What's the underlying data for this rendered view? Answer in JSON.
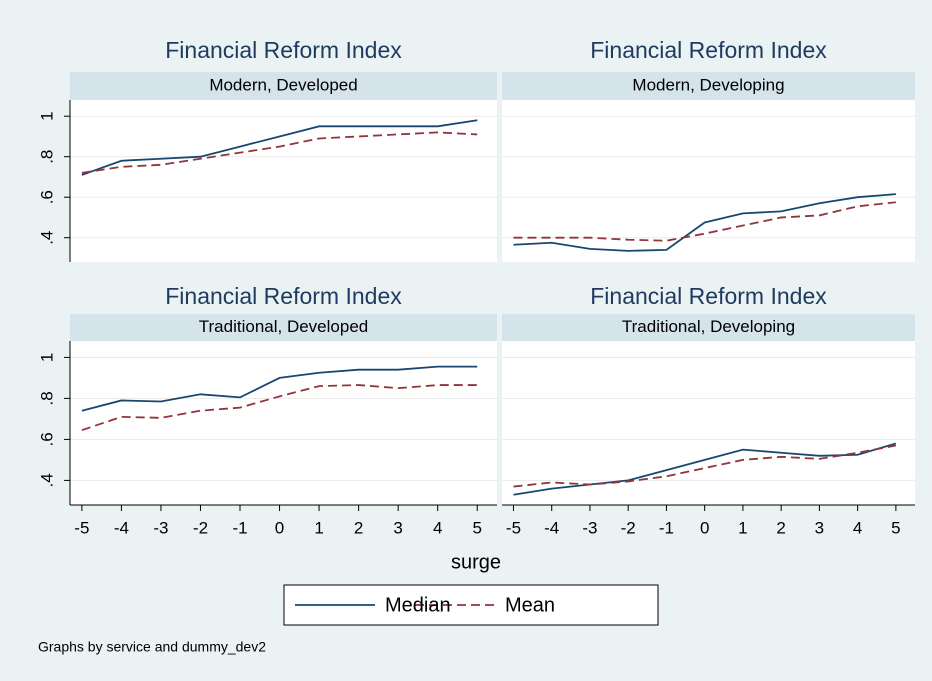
{
  "chart_data": [
    {
      "type": "line",
      "title": "Financial Reform Index",
      "subtitle": "Modern, Developed",
      "x": [
        -5,
        -4,
        -3,
        -2,
        -1,
        0,
        1,
        2,
        3,
        4,
        5
      ],
      "xlim": [
        -5.3,
        5.5
      ],
      "ylim": [
        0.28,
        1.08
      ],
      "yticks": [
        {
          "value": 0.4,
          "label": ".4"
        },
        {
          "value": 0.6,
          "label": ".6"
        },
        {
          "value": 0.8,
          "label": ".8"
        },
        1
      ],
      "grid": true,
      "series": [
        {
          "name": "Median",
          "color": "#1a476f",
          "dash": false,
          "values": [
            0.71,
            0.78,
            0.79,
            0.8,
            0.85,
            0.9,
            0.95,
            0.95,
            0.95,
            0.95,
            0.98
          ]
        },
        {
          "name": "Mean",
          "color": "#90353b",
          "dash": true,
          "values": [
            0.72,
            0.75,
            0.76,
            0.79,
            0.82,
            0.85,
            0.89,
            0.9,
            0.91,
            0.92,
            0.91
          ]
        }
      ]
    },
    {
      "type": "line",
      "title": "Financial Reform Index",
      "subtitle": "Modern, Developing",
      "x": [
        -5,
        -4,
        -3,
        -2,
        -1,
        0,
        1,
        2,
        3,
        4,
        5
      ],
      "xlim": [
        -5.3,
        5.5
      ],
      "ylim": [
        0.28,
        1.08
      ],
      "yticks": [
        {
          "value": 0.4,
          "label": ".4"
        },
        {
          "value": 0.6,
          "label": ".6"
        },
        {
          "value": 0.8,
          "label": ".8"
        },
        1
      ],
      "grid": true,
      "series": [
        {
          "name": "Median",
          "color": "#1a476f",
          "dash": false,
          "values": [
            0.365,
            0.375,
            0.345,
            0.335,
            0.34,
            0.475,
            0.52,
            0.53,
            0.57,
            0.6,
            0.615
          ]
        },
        {
          "name": "Mean",
          "color": "#90353b",
          "dash": true,
          "values": [
            0.4,
            0.4,
            0.4,
            0.39,
            0.385,
            0.42,
            0.46,
            0.5,
            0.51,
            0.555,
            0.575
          ]
        }
      ]
    },
    {
      "type": "line",
      "title": "Financial Reform Index",
      "subtitle": "Traditional, Developed",
      "x": [
        -5,
        -4,
        -3,
        -2,
        -1,
        0,
        1,
        2,
        3,
        4,
        5
      ],
      "xlim": [
        -5.3,
        5.5
      ],
      "xticks": [
        -5,
        -4,
        -3,
        -2,
        -1,
        0,
        1,
        2,
        3,
        4,
        5
      ],
      "ylim": [
        0.28,
        1.08
      ],
      "yticks": [
        {
          "value": 0.4,
          "label": ".4"
        },
        {
          "value": 0.6,
          "label": ".6"
        },
        {
          "value": 0.8,
          "label": ".8"
        },
        1
      ],
      "grid": true,
      "series": [
        {
          "name": "Median",
          "color": "#1a476f",
          "dash": false,
          "values": [
            0.74,
            0.79,
            0.785,
            0.82,
            0.805,
            0.9,
            0.925,
            0.94,
            0.94,
            0.955,
            0.955
          ]
        },
        {
          "name": "Mean",
          "color": "#90353b",
          "dash": true,
          "values": [
            0.645,
            0.71,
            0.705,
            0.74,
            0.755,
            0.81,
            0.86,
            0.865,
            0.85,
            0.865,
            0.865
          ]
        }
      ]
    },
    {
      "type": "line",
      "title": "Financial Reform Index",
      "subtitle": "Traditional, Developing",
      "x": [
        -5,
        -4,
        -3,
        -2,
        -1,
        0,
        1,
        2,
        3,
        4,
        5
      ],
      "xlim": [
        -5.3,
        5.5
      ],
      "xticks": [
        -5,
        -4,
        -3,
        -2,
        -1,
        0,
        1,
        2,
        3,
        4,
        5
      ],
      "ylim": [
        0.28,
        1.08
      ],
      "yticks": [
        {
          "value": 0.4,
          "label": ".4"
        },
        {
          "value": 0.6,
          "label": ".6"
        },
        {
          "value": 0.8,
          "label": ".8"
        },
        1
      ],
      "grid": true,
      "series": [
        {
          "name": "Median",
          "color": "#1a476f",
          "dash": false,
          "values": [
            0.33,
            0.36,
            0.38,
            0.4,
            0.45,
            0.5,
            0.55,
            0.535,
            0.52,
            0.525,
            0.58
          ]
        },
        {
          "name": "Mean",
          "color": "#90353b",
          "dash": true,
          "values": [
            0.37,
            0.39,
            0.38,
            0.395,
            0.42,
            0.46,
            0.5,
            0.515,
            0.505,
            0.535,
            0.57
          ]
        }
      ]
    }
  ],
  "x_label": "surge",
  "note": "Graphs by service and dummy_dev2"
}
